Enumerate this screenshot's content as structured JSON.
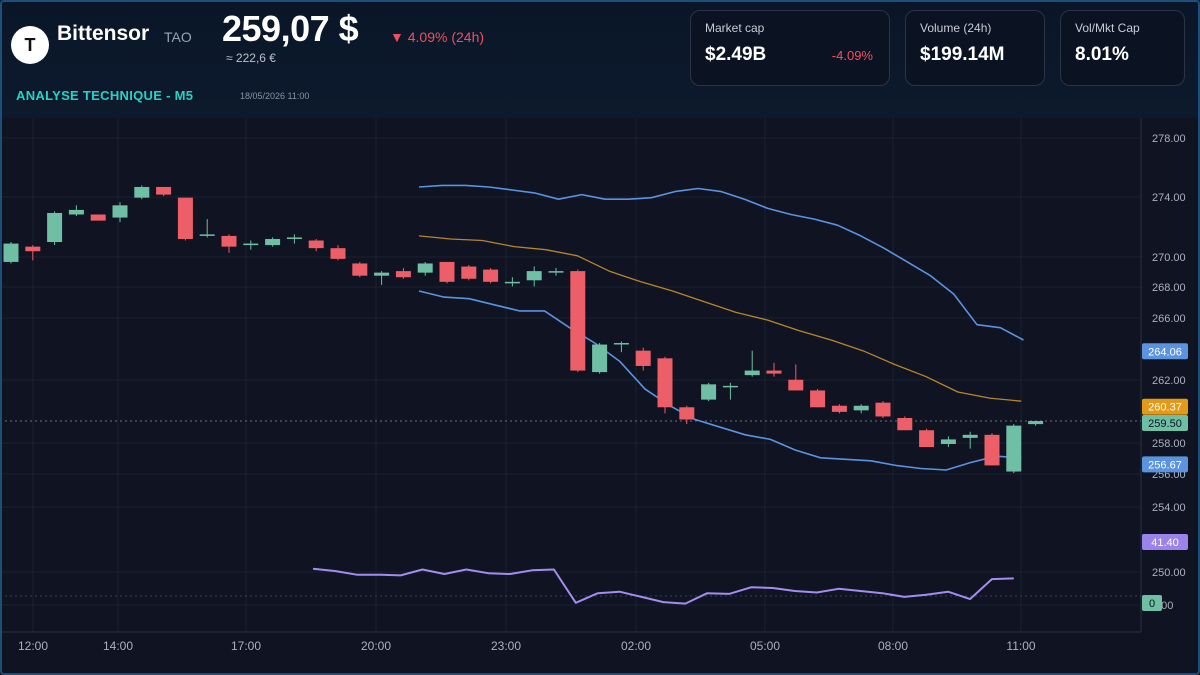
{
  "header": {
    "logo_letter": "T",
    "coin_name": "Bittensor",
    "ticker": "TAO",
    "price": "259,07 $",
    "price_change": "▼ 4.09% (24h)",
    "price_eur": "≈ 222,6 €",
    "section_title": "ANALYSE TECHNIQUE - M5",
    "timestamp": "18/05/2026 11:00"
  },
  "stats": [
    {
      "label": "Market cap",
      "value": "$2.49B",
      "delta": "-4.09%"
    },
    {
      "label": "Volume (24h)",
      "value": "$199.14M",
      "delta": ""
    },
    {
      "label": "Vol/Mkt Cap",
      "value": "8.01%",
      "delta": ""
    }
  ],
  "colors": {
    "up": "#6fbfa4",
    "down": "#ec5f68",
    "bollinger": "#5b93e0",
    "sma": "#b8862a",
    "rsi": "#a48cf0",
    "accent": "#23d3c3",
    "negative": "#ef4f5f"
  },
  "chart_data": {
    "type": "candlestick",
    "x_ticks": [
      "12:00",
      "14:00",
      "17:00",
      "20:00",
      "23:00",
      "02:00",
      "05:00",
      "08:00",
      "11:00"
    ],
    "y_ticks": [
      "278.00",
      "274.00",
      "270.00",
      "268.00",
      "266.00",
      "262.00",
      "258.00",
      "256.00",
      "254.00",
      "250.00",
      "8.00"
    ],
    "candles": [
      {
        "o": 269.9,
        "h": 271.2,
        "l": 269.8,
        "c": 271.1
      },
      {
        "o": 270.9,
        "h": 271.0,
        "l": 270.0,
        "c": 270.6
      },
      {
        "o": 271.2,
        "h": 273.2,
        "l": 271.0,
        "c": 273.1
      },
      {
        "o": 273.0,
        "h": 273.6,
        "l": 272.9,
        "c": 273.3
      },
      {
        "o": 273.0,
        "h": 273.0,
        "l": 272.6,
        "c": 272.6
      },
      {
        "o": 272.8,
        "h": 273.8,
        "l": 272.5,
        "c": 273.6
      },
      {
        "o": 274.1,
        "h": 274.9,
        "l": 274.0,
        "c": 274.8
      },
      {
        "o": 274.8,
        "h": 274.8,
        "l": 274.2,
        "c": 274.3
      },
      {
        "o": 274.1,
        "h": 274.1,
        "l": 271.3,
        "c": 271.4
      },
      {
        "o": 271.7,
        "h": 272.7,
        "l": 271.5,
        "c": 271.7
      },
      {
        "o": 271.6,
        "h": 271.7,
        "l": 270.5,
        "c": 270.9
      },
      {
        "o": 271.0,
        "h": 271.3,
        "l": 270.7,
        "c": 271.1
      },
      {
        "o": 271.0,
        "h": 271.5,
        "l": 270.9,
        "c": 271.4
      },
      {
        "o": 271.4,
        "h": 271.7,
        "l": 271.1,
        "c": 271.5
      },
      {
        "o": 271.3,
        "h": 271.4,
        "l": 270.6,
        "c": 270.8
      },
      {
        "o": 270.8,
        "h": 271.0,
        "l": 270.0,
        "c": 270.1
      },
      {
        "o": 269.8,
        "h": 269.9,
        "l": 268.9,
        "c": 269.0
      },
      {
        "o": 269.0,
        "h": 269.3,
        "l": 268.4,
        "c": 269.2
      },
      {
        "o": 269.3,
        "h": 269.5,
        "l": 268.8,
        "c": 268.9
      },
      {
        "o": 269.2,
        "h": 269.9,
        "l": 269.0,
        "c": 269.8
      },
      {
        "o": 269.9,
        "h": 269.9,
        "l": 268.5,
        "c": 268.6
      },
      {
        "o": 269.6,
        "h": 269.7,
        "l": 268.7,
        "c": 268.8
      },
      {
        "o": 269.4,
        "h": 269.5,
        "l": 268.5,
        "c": 268.6
      },
      {
        "o": 268.5,
        "h": 268.9,
        "l": 268.3,
        "c": 268.6
      },
      {
        "o": 268.7,
        "h": 269.6,
        "l": 268.3,
        "c": 269.3
      },
      {
        "o": 269.2,
        "h": 269.5,
        "l": 269.0,
        "c": 269.3
      },
      {
        "o": 269.3,
        "h": 269.4,
        "l": 262.7,
        "c": 262.8
      },
      {
        "o": 262.7,
        "h": 264.6,
        "l": 262.6,
        "c": 264.5
      },
      {
        "o": 264.6,
        "h": 264.7,
        "l": 264.0,
        "c": 264.6
      },
      {
        "o": 264.1,
        "h": 264.3,
        "l": 262.8,
        "c": 263.1
      },
      {
        "o": 263.6,
        "h": 263.7,
        "l": 260.0,
        "c": 260.4
      },
      {
        "o": 260.4,
        "h": 260.5,
        "l": 259.3,
        "c": 259.6
      },
      {
        "o": 260.9,
        "h": 262.0,
        "l": 260.8,
        "c": 261.9
      },
      {
        "o": 261.8,
        "h": 262.0,
        "l": 260.9,
        "c": 261.8
      },
      {
        "o": 262.5,
        "h": 264.1,
        "l": 262.4,
        "c": 262.8
      },
      {
        "o": 262.8,
        "h": 263.3,
        "l": 262.4,
        "c": 262.6
      },
      {
        "o": 262.2,
        "h": 263.2,
        "l": 261.5,
        "c": 261.5
      },
      {
        "o": 261.5,
        "h": 261.6,
        "l": 260.4,
        "c": 260.4
      },
      {
        "o": 260.5,
        "h": 260.6,
        "l": 260.0,
        "c": 260.1
      },
      {
        "o": 260.2,
        "h": 260.6,
        "l": 260.0,
        "c": 260.5
      },
      {
        "o": 260.7,
        "h": 260.8,
        "l": 259.7,
        "c": 259.8
      },
      {
        "o": 259.7,
        "h": 259.8,
        "l": 258.9,
        "c": 258.9
      },
      {
        "o": 258.9,
        "h": 259.0,
        "l": 257.8,
        "c": 257.8
      },
      {
        "o": 258.0,
        "h": 258.5,
        "l": 257.8,
        "c": 258.3
      },
      {
        "o": 258.4,
        "h": 258.8,
        "l": 257.7,
        "c": 258.6
      },
      {
        "o": 258.6,
        "h": 258.7,
        "l": 256.6,
        "c": 256.6
      },
      {
        "o": 256.2,
        "h": 259.3,
        "l": 256.1,
        "c": 259.2
      },
      {
        "o": 259.3,
        "h": 259.5,
        "l": 259.2,
        "c": 259.5
      }
    ],
    "bollinger_upper": [
      274.8,
      274.9,
      274.9,
      274.8,
      274.6,
      274.4,
      274.0,
      274.3,
      274.0,
      274.0,
      274.1,
      274.5,
      274.7,
      274.5,
      274.0,
      273.4,
      273.0,
      272.7,
      272.3,
      271.6,
      270.8,
      269.9,
      269.0,
      267.8,
      265.8,
      265.6,
      264.8
    ],
    "bollinger_lower": [
      268.0,
      267.6,
      267.5,
      267.1,
      266.7,
      266.7,
      265.6,
      264.6,
      263.4,
      261.6,
      260.5,
      259.6,
      259.1,
      258.6,
      258.3,
      257.6,
      257.1,
      257.0,
      256.9,
      256.6,
      256.4,
      256.3,
      256.8,
      257.2,
      257.1
    ],
    "sma": [
      271.6,
      271.4,
      271.3,
      270.9,
      270.7,
      270.3,
      269.3,
      268.6,
      268.0,
      267.3,
      266.6,
      266.1,
      265.4,
      264.8,
      264.1,
      263.2,
      262.4,
      261.4,
      261.0,
      260.8
    ],
    "rsi": [
      53,
      50,
      45,
      45,
      44,
      52,
      46,
      52,
      47,
      46,
      51,
      52,
      7,
      20,
      22,
      15,
      8,
      6,
      20,
      19,
      28,
      27,
      23,
      21,
      26,
      23,
      20,
      15,
      18,
      22,
      12,
      39,
      40
    ],
    "last_values": {
      "bollinger_upper": "264.06",
      "sma": "260.37",
      "price": "259.50",
      "bollinger_lower": "256.67",
      "rsi": "41.40",
      "rsi_zero": "0"
    }
  }
}
